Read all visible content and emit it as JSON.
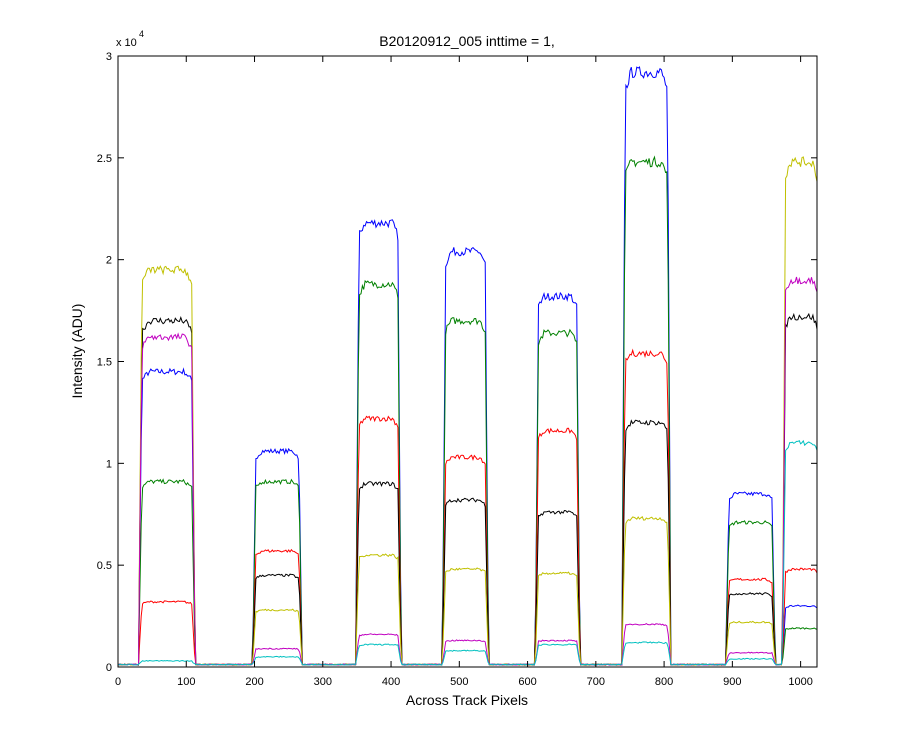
{
  "chart_data": {
    "type": "line",
    "title": "B20120912_005 inttime = 1,",
    "xlabel": "Across Track Pixels",
    "ylabel": "Intensity (ADU)",
    "y_exponent_label": "x 10",
    "y_exponent_power": "4",
    "xlim": [
      0,
      1024
    ],
    "ylim": [
      0,
      3
    ],
    "xticks": [
      0,
      100,
      200,
      300,
      400,
      500,
      600,
      700,
      800,
      900,
      1000
    ],
    "yticks": [
      0,
      0.5,
      1,
      1.5,
      2,
      2.5,
      3
    ],
    "ytick_labels": [
      "0",
      "0.5",
      "1",
      "1.5",
      "2",
      "2.5",
      "3"
    ],
    "grid": false,
    "baseline": 0.012,
    "segments": [
      {
        "x0": 35,
        "x1": 108,
        "xe": null
      },
      {
        "x0": 202,
        "x1": 265,
        "xe": null
      },
      {
        "x0": 353,
        "x1": 410,
        "xe": null
      },
      {
        "x0": 480,
        "x1": 538,
        "xe": null
      },
      {
        "x0": 616,
        "x1": 672,
        "xe": null
      },
      {
        "x0": 743,
        "x1": 805,
        "xe": null
      },
      {
        "x0": 895,
        "x1": 958,
        "xe": null
      },
      {
        "x0": 978,
        "x1": 1024,
        "xe": 1024
      }
    ],
    "series": [
      {
        "color": "#0000ff",
        "levels": [
          1.45,
          1.06,
          2.18,
          2.04,
          1.82,
          2.92,
          0.85,
          0.3
        ]
      },
      {
        "color": "#008000",
        "levels": [
          0.91,
          0.91,
          1.88,
          1.7,
          1.64,
          2.48,
          0.71,
          0.19
        ]
      },
      {
        "color": "#ff0000",
        "levels": [
          0.32,
          0.57,
          1.22,
          1.03,
          1.16,
          1.54,
          0.43,
          0.48
        ]
      },
      {
        "color": "#000000",
        "levels": [
          1.7,
          0.45,
          0.9,
          0.82,
          0.76,
          1.2,
          0.36,
          1.72
        ]
      },
      {
        "color": "#c0c000",
        "levels": [
          1.95,
          0.28,
          0.55,
          0.48,
          0.46,
          0.73,
          0.22,
          2.48
        ]
      },
      {
        "color": "#c000c0",
        "levels": [
          1.62,
          0.09,
          0.16,
          0.13,
          0.13,
          0.21,
          0.07,
          1.9
        ]
      },
      {
        "color": "#00c0c0",
        "levels": [
          0.03,
          0.05,
          0.11,
          0.08,
          0.11,
          0.12,
          0.04,
          1.1
        ]
      }
    ]
  }
}
